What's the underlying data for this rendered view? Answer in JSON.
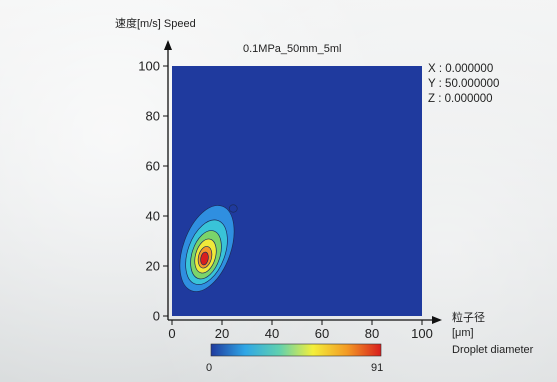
{
  "chart_data": {
    "type": "heatmap",
    "title": "0.1MPa_50mm_5ml",
    "ylabel": "速度[m/s]  Speed",
    "xlabel_lines": [
      "粒子径",
      "[μm]",
      "Droplet diameter"
    ],
    "xlim": [
      0,
      100
    ],
    "ylim": [
      0,
      100
    ],
    "xticks": [
      "0",
      "20",
      "40",
      "60",
      "80",
      "100"
    ],
    "yticks": [
      "0",
      "20",
      "40",
      "60",
      "80",
      "100"
    ],
    "cursor_readout": [
      "X : 0.000000",
      "Y : 50.000000",
      "Z : 0.000000"
    ],
    "colorbar": {
      "min": "0",
      "max": "91",
      "colors": [
        "#1f3a9e",
        "#2fa6e6",
        "#5fd0b0",
        "#f3ef3b",
        "#f39a24",
        "#d81e1e"
      ]
    },
    "background_color": "#1f3a9e",
    "contour_levels": [
      {
        "level": 0.1,
        "color": "#2f8fe0",
        "cx": 14,
        "cy": 27,
        "rx": 9.5,
        "ry": 18,
        "angle": 20
      },
      {
        "level": 0.25,
        "color": "#39c3d8",
        "cx": 13.8,
        "cy": 25.5,
        "rx": 7.4,
        "ry": 13.5,
        "angle": 20
      },
      {
        "level": 0.45,
        "color": "#7bd46a",
        "cx": 13.6,
        "cy": 24.5,
        "rx": 5.6,
        "ry": 10,
        "angle": 18
      },
      {
        "level": 0.65,
        "color": "#efe93a",
        "cx": 13.4,
        "cy": 24,
        "rx": 4,
        "ry": 7,
        "angle": 16
      },
      {
        "level": 0.82,
        "color": "#f2962a",
        "cx": 13.2,
        "cy": 23.5,
        "rx": 2.6,
        "ry": 4.4,
        "angle": 14
      },
      {
        "level": 1.0,
        "color": "#d81e1e",
        "cx": 13,
        "cy": 23,
        "rx": 1.5,
        "ry": 2.6,
        "angle": 10
      }
    ]
  }
}
